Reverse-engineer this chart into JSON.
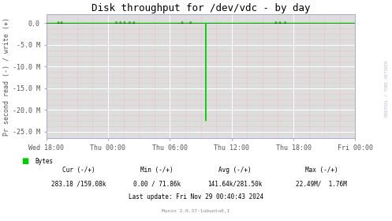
{
  "title": "Disk throughput for /dev/vdc - by day",
  "ylabel": "Pr second read (-) / write (+)",
  "bg_color": "#FFFFFF",
  "plot_bg_color": "#DDDDDD",
  "grid_major_color": "#FFFFFF",
  "grid_minor_color": "#FF9999",
  "line_color": "#00CC00",
  "border_color": "#AAAACC",
  "axis_label_color": "#555555",
  "text_color": "#000000",
  "stats_text_color": "#333333",
  "x_ticks": [
    0,
    6,
    12,
    18,
    24,
    30
  ],
  "x_labels": [
    "Wed 18:00",
    "Thu 00:00",
    "Thu 06:00",
    "Thu 12:00",
    "Thu 18:00",
    "Fri 00:00"
  ],
  "y_ticks": [
    0.0,
    -5.0,
    -10.0,
    -15.0,
    -20.0,
    -25.0
  ],
  "y_labels": [
    "0.0",
    "-5.0 M",
    "-10.0 M",
    "-15.0 M",
    "-20.0 M",
    "-25.0 M"
  ],
  "ylim": [
    -26.5,
    2.0
  ],
  "xlim": [
    0,
    30
  ],
  "footer_text": "Munin 2.0.37-1ubuntu0.1",
  "legend_label": "Bytes",
  "last_update": "Last update: Fri Nov 29 00:40:43 2024",
  "rrdtool_text": "RRDTOOL / TOBI OETIKER",
  "spike_x": 15.5,
  "spike_y": -22.5,
  "minor_x_step": 1.5,
  "minor_y_step": 1.25,
  "figwidth": 4.97,
  "figheight": 2.8,
  "dpi": 100
}
